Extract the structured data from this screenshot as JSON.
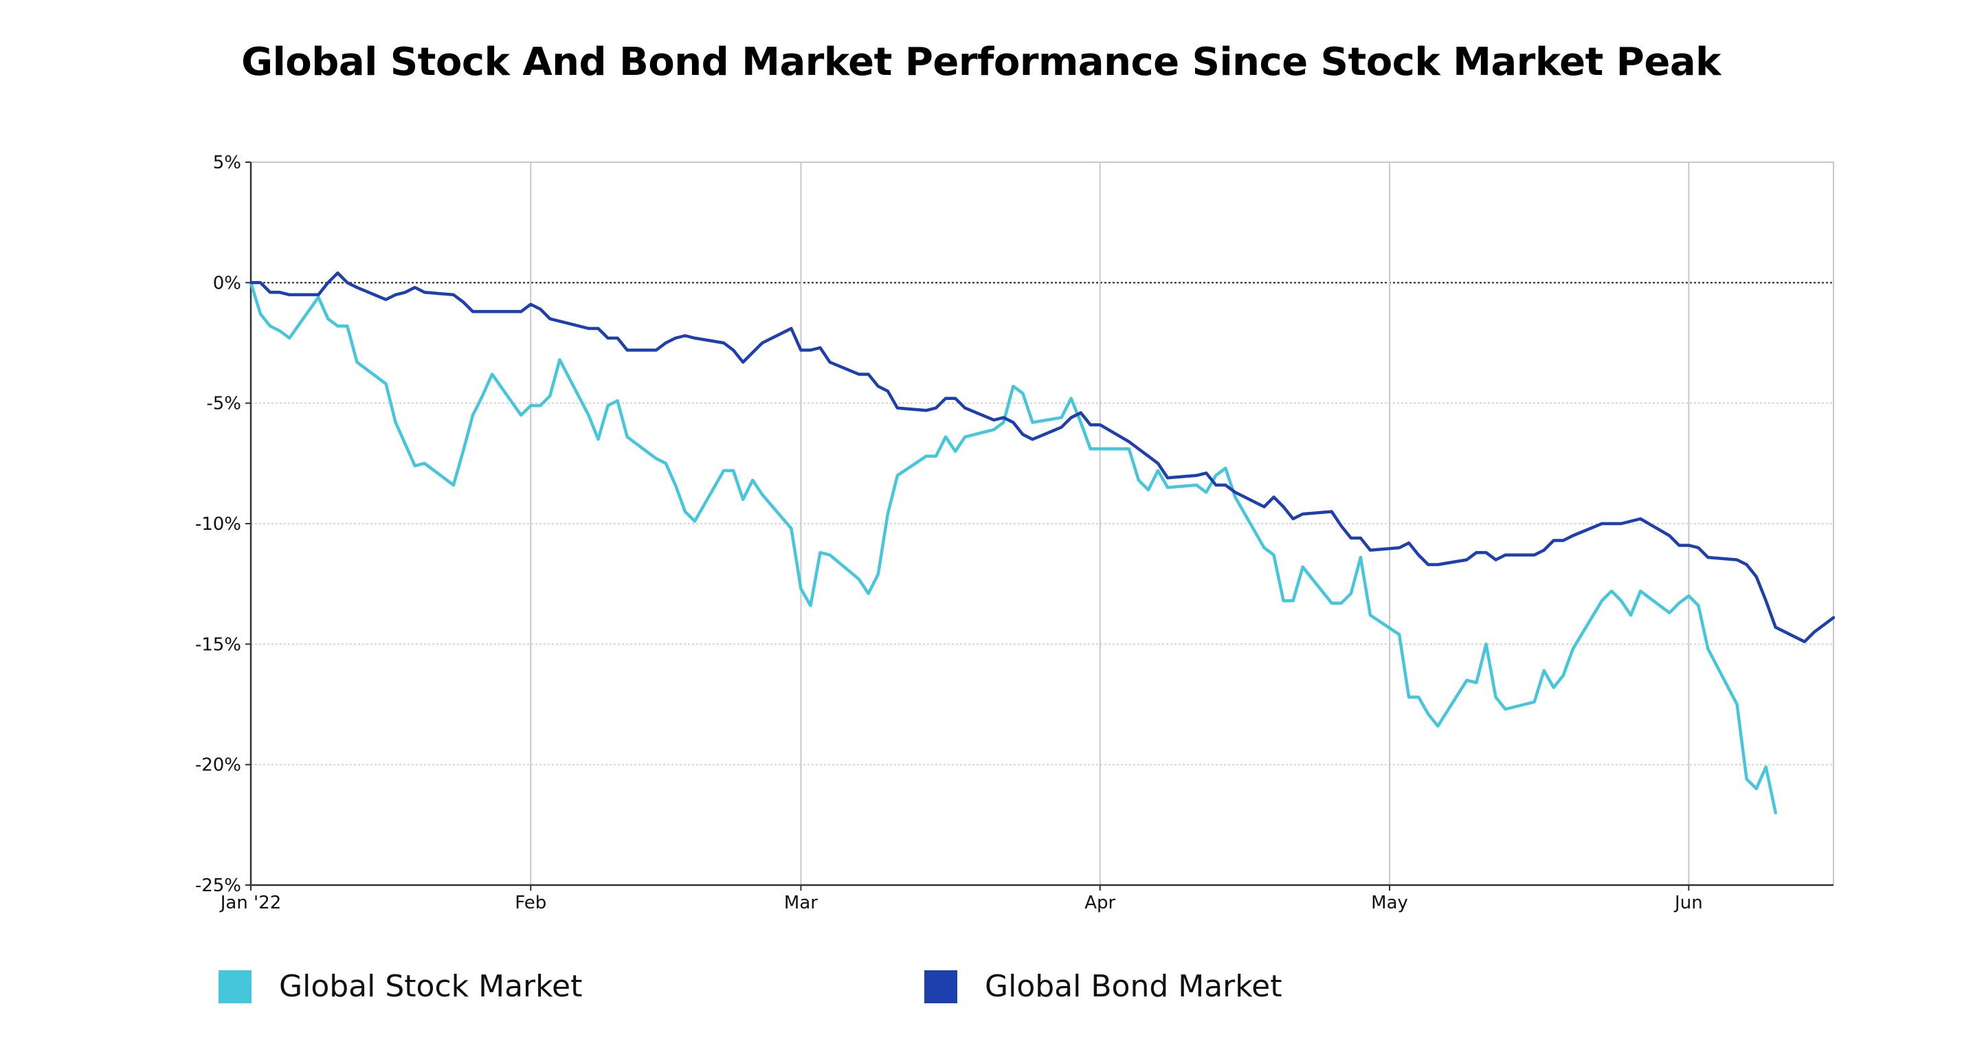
{
  "colors": {
    "stock": "#45C6DB",
    "bond": "#1E3FAE",
    "grid": "#c8c8c8",
    "axis": "#333333",
    "zero_line": "#222222"
  },
  "chart_data": {
    "type": "line",
    "title": "Global Stock And Bond Market Performance Since Stock Market Peak",
    "xlabel": "",
    "ylabel": "",
    "ylim": [
      -25,
      5
    ],
    "y_ticks": [
      5,
      0,
      -5,
      -10,
      -15,
      -20,
      -25
    ],
    "y_tick_labels": [
      "5%",
      "0%",
      "-5%",
      "-10%",
      "-15%",
      "-20%",
      "-25%"
    ],
    "xlim": [
      "2022-01-03",
      "2022-06-16"
    ],
    "x_ticks": [
      {
        "date": "2022-01-03",
        "label": "Jan '22"
      },
      {
        "date": "2022-02-01",
        "label": "Feb"
      },
      {
        "date": "2022-03-01",
        "label": "Mar"
      },
      {
        "date": "2022-04-01",
        "label": "Apr"
      },
      {
        "date": "2022-05-01",
        "label": "May"
      },
      {
        "date": "2022-06-01",
        "label": "Jun"
      }
    ],
    "grid": true,
    "legend_position": "bottom",
    "series": [
      {
        "name": "Global Stock Market",
        "color_key": "stock",
        "points": [
          [
            "2022-01-03",
            0.0
          ],
          [
            "2022-01-04",
            -1.3
          ],
          [
            "2022-01-05",
            -1.8
          ],
          [
            "2022-01-06",
            -2.0
          ],
          [
            "2022-01-07",
            -2.3
          ],
          [
            "2022-01-10",
            -0.6
          ],
          [
            "2022-01-11",
            -1.5
          ],
          [
            "2022-01-12",
            -1.8
          ],
          [
            "2022-01-13",
            -1.8
          ],
          [
            "2022-01-14",
            -3.3
          ],
          [
            "2022-01-17",
            -4.2
          ],
          [
            "2022-01-18",
            -5.8
          ],
          [
            "2022-01-19",
            -6.7
          ],
          [
            "2022-01-20",
            -7.6
          ],
          [
            "2022-01-21",
            -7.5
          ],
          [
            "2022-01-24",
            -8.4
          ],
          [
            "2022-01-25",
            -7.0
          ],
          [
            "2022-01-26",
            -5.5
          ],
          [
            "2022-01-27",
            -4.7
          ],
          [
            "2022-01-28",
            -3.8
          ],
          [
            "2022-01-31",
            -5.5
          ],
          [
            "2022-02-01",
            -5.1
          ],
          [
            "2022-02-02",
            -5.1
          ],
          [
            "2022-02-03",
            -4.7
          ],
          [
            "2022-02-04",
            -3.2
          ],
          [
            "2022-02-07",
            -5.5
          ],
          [
            "2022-02-08",
            -6.5
          ],
          [
            "2022-02-09",
            -5.1
          ],
          [
            "2022-02-10",
            -4.9
          ],
          [
            "2022-02-11",
            -6.4
          ],
          [
            "2022-02-14",
            -7.3
          ],
          [
            "2022-02-15",
            -7.5
          ],
          [
            "2022-02-16",
            -8.4
          ],
          [
            "2022-02-17",
            -9.5
          ],
          [
            "2022-02-18",
            -9.9
          ],
          [
            "2022-02-21",
            -7.8
          ],
          [
            "2022-02-22",
            -7.8
          ],
          [
            "2022-02-23",
            -9.0
          ],
          [
            "2022-02-24",
            -8.2
          ],
          [
            "2022-02-25",
            -8.8
          ],
          [
            "2022-02-28",
            -10.2
          ],
          [
            "2022-03-01",
            -12.7
          ],
          [
            "2022-03-02",
            -13.4
          ],
          [
            "2022-03-03",
            -11.2
          ],
          [
            "2022-03-04",
            -11.3
          ],
          [
            "2022-03-07",
            -12.3
          ],
          [
            "2022-03-08",
            -12.9
          ],
          [
            "2022-03-09",
            -12.1
          ],
          [
            "2022-03-10",
            -9.6
          ],
          [
            "2022-03-11",
            -8.0
          ],
          [
            "2022-03-14",
            -7.2
          ],
          [
            "2022-03-15",
            -7.2
          ],
          [
            "2022-03-16",
            -6.4
          ],
          [
            "2022-03-17",
            -7.0
          ],
          [
            "2022-03-18",
            -6.4
          ],
          [
            "2022-03-21",
            -6.1
          ],
          [
            "2022-03-22",
            -5.8
          ],
          [
            "2022-03-23",
            -4.3
          ],
          [
            "2022-03-24",
            -4.6
          ],
          [
            "2022-03-25",
            -5.8
          ],
          [
            "2022-03-28",
            -5.6
          ],
          [
            "2022-03-29",
            -4.8
          ],
          [
            "2022-03-30",
            -5.8
          ],
          [
            "2022-03-31",
            -6.9
          ],
          [
            "2022-04-01",
            -6.9
          ],
          [
            "2022-04-04",
            -6.9
          ],
          [
            "2022-04-05",
            -8.2
          ],
          [
            "2022-04-06",
            -8.6
          ],
          [
            "2022-04-07",
            -7.8
          ],
          [
            "2022-04-08",
            -8.5
          ],
          [
            "2022-04-11",
            -8.4
          ],
          [
            "2022-04-12",
            -8.7
          ],
          [
            "2022-04-13",
            -8.0
          ],
          [
            "2022-04-14",
            -7.7
          ],
          [
            "2022-04-15",
            -8.9
          ],
          [
            "2022-04-18",
            -11.0
          ],
          [
            "2022-04-19",
            -11.3
          ],
          [
            "2022-04-20",
            -13.2
          ],
          [
            "2022-04-21",
            -13.2
          ],
          [
            "2022-04-22",
            -11.8
          ],
          [
            "2022-04-25",
            -13.3
          ],
          [
            "2022-04-26",
            -13.3
          ],
          [
            "2022-04-27",
            -12.9
          ],
          [
            "2022-04-28",
            -11.4
          ],
          [
            "2022-04-29",
            -13.8
          ],
          [
            "2022-05-02",
            -14.6
          ],
          [
            "2022-05-03",
            -17.2
          ],
          [
            "2022-05-04",
            -17.2
          ],
          [
            "2022-05-05",
            -17.9
          ],
          [
            "2022-05-06",
            -18.4
          ],
          [
            "2022-05-09",
            -16.5
          ],
          [
            "2022-05-10",
            -16.6
          ],
          [
            "2022-05-11",
            -15.0
          ],
          [
            "2022-05-12",
            -17.2
          ],
          [
            "2022-05-13",
            -17.7
          ],
          [
            "2022-05-16",
            -17.4
          ],
          [
            "2022-05-17",
            -16.1
          ],
          [
            "2022-05-18",
            -16.8
          ],
          [
            "2022-05-19",
            -16.3
          ],
          [
            "2022-05-20",
            -15.2
          ],
          [
            "2022-05-23",
            -13.2
          ],
          [
            "2022-05-24",
            -12.8
          ],
          [
            "2022-05-25",
            -13.2
          ],
          [
            "2022-05-26",
            -13.8
          ],
          [
            "2022-05-27",
            -12.8
          ],
          [
            "2022-05-30",
            -13.7
          ],
          [
            "2022-05-31",
            -13.3
          ],
          [
            "2022-06-01",
            -13.0
          ],
          [
            "2022-06-02",
            -13.4
          ],
          [
            "2022-06-03",
            -15.2
          ],
          [
            "2022-06-06",
            -17.5
          ],
          [
            "2022-06-07",
            -20.6
          ],
          [
            "2022-06-08",
            -21.0
          ],
          [
            "2022-06-09",
            -20.1
          ],
          [
            "2022-06-10",
            -22.0
          ]
        ]
      },
      {
        "name": "Global Bond Market",
        "color_key": "bond",
        "points": [
          [
            "2022-01-03",
            0.0
          ],
          [
            "2022-01-04",
            0.0
          ],
          [
            "2022-01-05",
            -0.4
          ],
          [
            "2022-01-06",
            -0.4
          ],
          [
            "2022-01-07",
            -0.5
          ],
          [
            "2022-01-10",
            -0.5
          ],
          [
            "2022-01-11",
            0.0
          ],
          [
            "2022-01-12",
            0.4
          ],
          [
            "2022-01-13",
            0.0
          ],
          [
            "2022-01-14",
            -0.2
          ],
          [
            "2022-01-17",
            -0.7
          ],
          [
            "2022-01-18",
            -0.5
          ],
          [
            "2022-01-19",
            -0.4
          ],
          [
            "2022-01-20",
            -0.2
          ],
          [
            "2022-01-21",
            -0.4
          ],
          [
            "2022-01-24",
            -0.5
          ],
          [
            "2022-01-25",
            -0.8
          ],
          [
            "2022-01-26",
            -1.2
          ],
          [
            "2022-01-27",
            -1.2
          ],
          [
            "2022-01-28",
            -1.2
          ],
          [
            "2022-01-31",
            -1.2
          ],
          [
            "2022-02-01",
            -0.9
          ],
          [
            "2022-02-02",
            -1.1
          ],
          [
            "2022-02-03",
            -1.5
          ],
          [
            "2022-02-04",
            -1.6
          ],
          [
            "2022-02-07",
            -1.9
          ],
          [
            "2022-02-08",
            -1.9
          ],
          [
            "2022-02-09",
            -2.3
          ],
          [
            "2022-02-10",
            -2.3
          ],
          [
            "2022-02-11",
            -2.8
          ],
          [
            "2022-02-14",
            -2.8
          ],
          [
            "2022-02-15",
            -2.5
          ],
          [
            "2022-02-16",
            -2.3
          ],
          [
            "2022-02-17",
            -2.2
          ],
          [
            "2022-02-18",
            -2.3
          ],
          [
            "2022-02-21",
            -2.5
          ],
          [
            "2022-02-22",
            -2.8
          ],
          [
            "2022-02-23",
            -3.3
          ],
          [
            "2022-02-24",
            -2.9
          ],
          [
            "2022-02-25",
            -2.5
          ],
          [
            "2022-02-28",
            -1.9
          ],
          [
            "2022-03-01",
            -2.8
          ],
          [
            "2022-03-02",
            -2.8
          ],
          [
            "2022-03-03",
            -2.7
          ],
          [
            "2022-03-04",
            -3.3
          ],
          [
            "2022-03-07",
            -3.8
          ],
          [
            "2022-03-08",
            -3.8
          ],
          [
            "2022-03-09",
            -4.3
          ],
          [
            "2022-03-10",
            -4.5
          ],
          [
            "2022-03-11",
            -5.2
          ],
          [
            "2022-03-14",
            -5.3
          ],
          [
            "2022-03-15",
            -5.2
          ],
          [
            "2022-03-16",
            -4.8
          ],
          [
            "2022-03-17",
            -4.8
          ],
          [
            "2022-03-18",
            -5.2
          ],
          [
            "2022-03-21",
            -5.7
          ],
          [
            "2022-03-22",
            -5.6
          ],
          [
            "2022-03-23",
            -5.8
          ],
          [
            "2022-03-24",
            -6.3
          ],
          [
            "2022-03-25",
            -6.5
          ],
          [
            "2022-03-28",
            -6.0
          ],
          [
            "2022-03-29",
            -5.6
          ],
          [
            "2022-03-30",
            -5.4
          ],
          [
            "2022-03-31",
            -5.9
          ],
          [
            "2022-04-01",
            -5.9
          ],
          [
            "2022-04-04",
            -6.6
          ],
          [
            "2022-04-05",
            -6.9
          ],
          [
            "2022-04-06",
            -7.2
          ],
          [
            "2022-04-07",
            -7.5
          ],
          [
            "2022-04-08",
            -8.1
          ],
          [
            "2022-04-11",
            -8.0
          ],
          [
            "2022-04-12",
            -7.9
          ],
          [
            "2022-04-13",
            -8.4
          ],
          [
            "2022-04-14",
            -8.4
          ],
          [
            "2022-04-15",
            -8.7
          ],
          [
            "2022-04-18",
            -9.3
          ],
          [
            "2022-04-19",
            -8.9
          ],
          [
            "2022-04-20",
            -9.3
          ],
          [
            "2022-04-21",
            -9.8
          ],
          [
            "2022-04-22",
            -9.6
          ],
          [
            "2022-04-25",
            -9.5
          ],
          [
            "2022-04-26",
            -10.1
          ],
          [
            "2022-04-27",
            -10.6
          ],
          [
            "2022-04-28",
            -10.6
          ],
          [
            "2022-04-29",
            -11.1
          ],
          [
            "2022-05-02",
            -11.0
          ],
          [
            "2022-05-03",
            -10.8
          ],
          [
            "2022-05-04",
            -11.3
          ],
          [
            "2022-05-05",
            -11.7
          ],
          [
            "2022-05-06",
            -11.7
          ],
          [
            "2022-05-09",
            -11.5
          ],
          [
            "2022-05-10",
            -11.2
          ],
          [
            "2022-05-11",
            -11.2
          ],
          [
            "2022-05-12",
            -11.5
          ],
          [
            "2022-05-13",
            -11.3
          ],
          [
            "2022-05-16",
            -11.3
          ],
          [
            "2022-05-17",
            -11.1
          ],
          [
            "2022-05-18",
            -10.7
          ],
          [
            "2022-05-19",
            -10.7
          ],
          [
            "2022-05-20",
            -10.5
          ],
          [
            "2022-05-23",
            -10.0
          ],
          [
            "2022-05-24",
            -10.0
          ],
          [
            "2022-05-25",
            -10.0
          ],
          [
            "2022-05-26",
            -9.9
          ],
          [
            "2022-05-27",
            -9.8
          ],
          [
            "2022-05-30",
            -10.5
          ],
          [
            "2022-05-31",
            -10.9
          ],
          [
            "2022-06-01",
            -10.9
          ],
          [
            "2022-06-02",
            -11.0
          ],
          [
            "2022-06-03",
            -11.4
          ],
          [
            "2022-06-06",
            -11.5
          ],
          [
            "2022-06-07",
            -11.7
          ],
          [
            "2022-06-08",
            -12.2
          ],
          [
            "2022-06-09",
            -13.2
          ],
          [
            "2022-06-10",
            -14.3
          ],
          [
            "2022-06-13",
            -14.9
          ],
          [
            "2022-06-14",
            -14.5
          ],
          [
            "2022-06-15",
            -14.2
          ],
          [
            "2022-06-16",
            -13.9
          ]
        ]
      }
    ]
  }
}
